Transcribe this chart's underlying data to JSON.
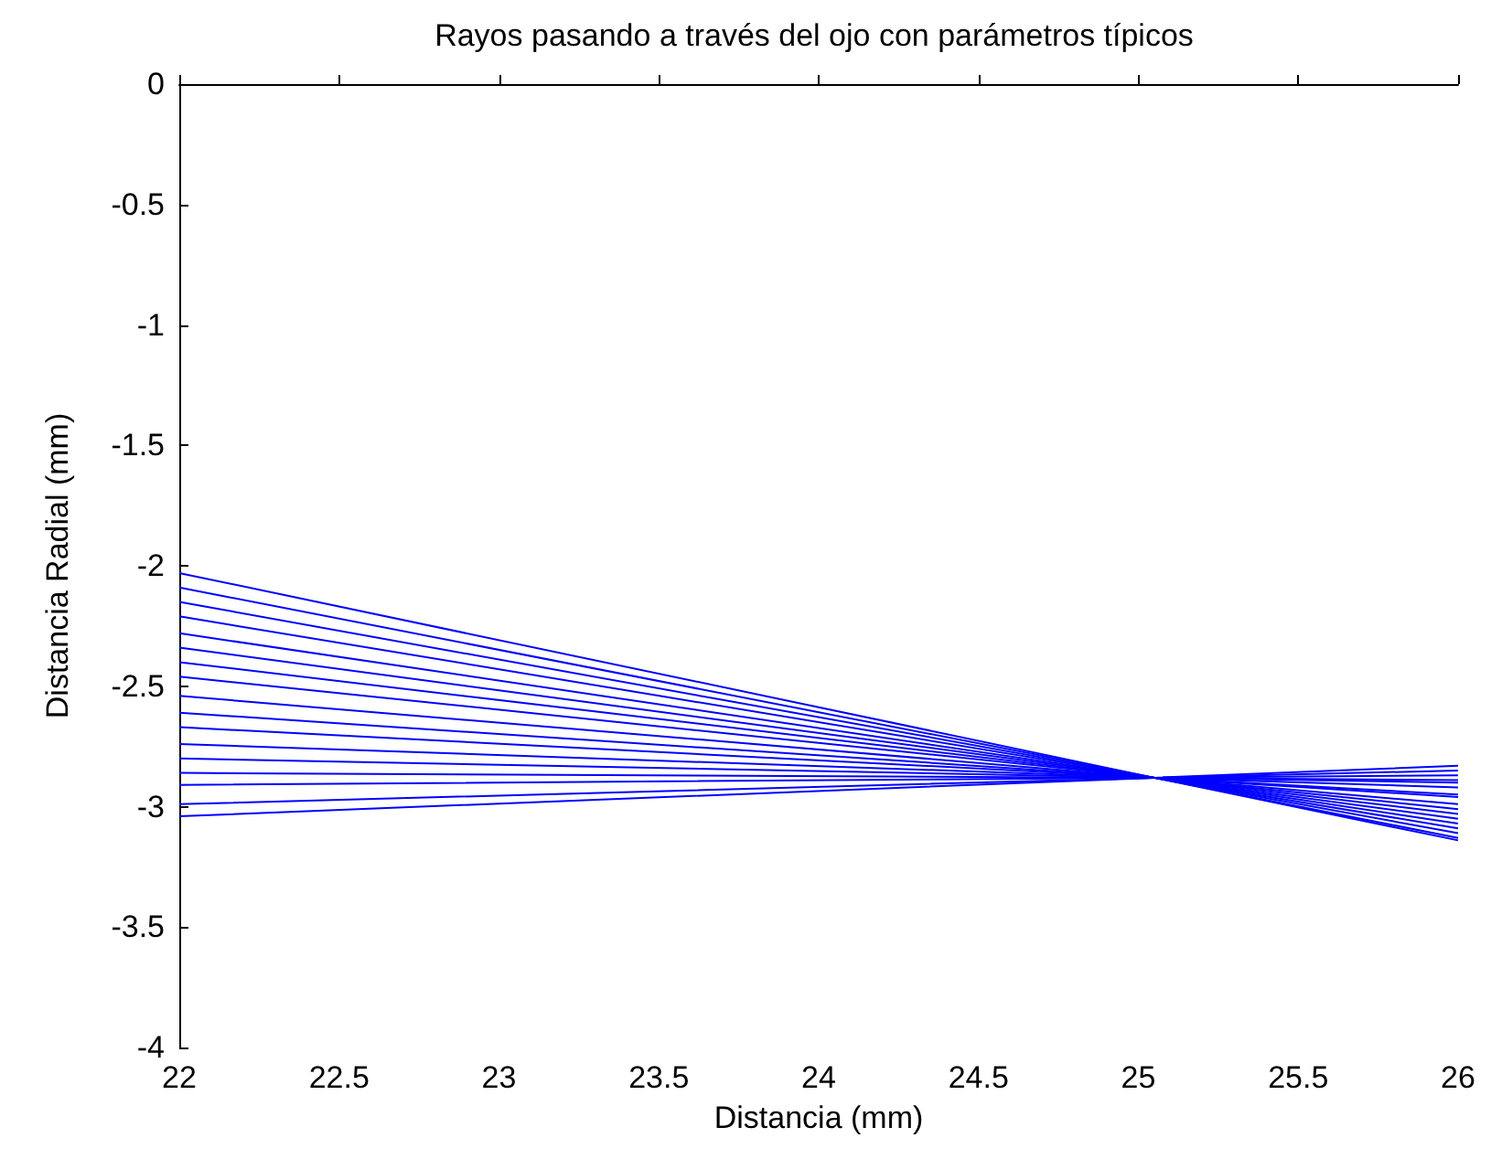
{
  "chart_data": {
    "type": "line",
    "title": "Rayos pasando a través del ojo con parámetros típicos",
    "xlabel": "Distancia (mm)",
    "ylabel": "Distancia Radial (mm)",
    "x": [
      22,
      25.05,
      26
    ],
    "xlim": [
      22,
      26
    ],
    "xticks": [
      22,
      22.5,
      23,
      23.5,
      24,
      24.5,
      25,
      25.5,
      26
    ],
    "ylim": [
      -4,
      0
    ],
    "yticks": [
      -4,
      -3.5,
      -3,
      -2.5,
      -2,
      -1.5,
      -1,
      -0.5,
      0
    ],
    "marker": "none",
    "grid": false,
    "series": [
      {
        "color": "#0000ff",
        "values": [
          -2.03,
          -2.88,
          -3.14
        ]
      },
      {
        "color": "#0000ff",
        "values": [
          -2.09,
          -2.88,
          -3.13
        ]
      },
      {
        "color": "#0000ff",
        "values": [
          -2.15,
          -2.88,
          -3.11
        ]
      },
      {
        "color": "#0000ff",
        "values": [
          -2.21,
          -2.88,
          -3.09
        ]
      },
      {
        "color": "#0000ff",
        "values": [
          -2.28,
          -2.88,
          -3.07
        ]
      },
      {
        "color": "#0000ff",
        "values": [
          -2.34,
          -2.88,
          -3.05
        ]
      },
      {
        "color": "#0000ff",
        "values": [
          -2.4,
          -2.88,
          -3.03
        ]
      },
      {
        "color": "#0000ff",
        "values": [
          -2.46,
          -2.88,
          -3.01
        ]
      },
      {
        "color": "#0000ff",
        "values": [
          -2.54,
          -2.88,
          -2.99
        ]
      },
      {
        "color": "#0000ff",
        "values": [
          -2.61,
          -2.88,
          -2.96
        ]
      },
      {
        "color": "#0000ff",
        "values": [
          -2.67,
          -2.88,
          -2.95
        ]
      },
      {
        "color": "#0000ff",
        "values": [
          -2.74,
          -2.88,
          -2.92
        ]
      },
      {
        "color": "#0000ff",
        "values": [
          -2.8,
          -2.88,
          -2.9
        ]
      },
      {
        "color": "#0000ff",
        "values": [
          -2.86,
          -2.88,
          -2.89
        ]
      },
      {
        "color": "#0000ff",
        "values": [
          -2.91,
          -2.88,
          -2.87
        ]
      },
      {
        "color": "#0000ff",
        "values": [
          -2.99,
          -2.88,
          -2.85
        ]
      },
      {
        "color": "#0000ff",
        "values": [
          -3.04,
          -2.88,
          -2.83
        ]
      }
    ]
  }
}
